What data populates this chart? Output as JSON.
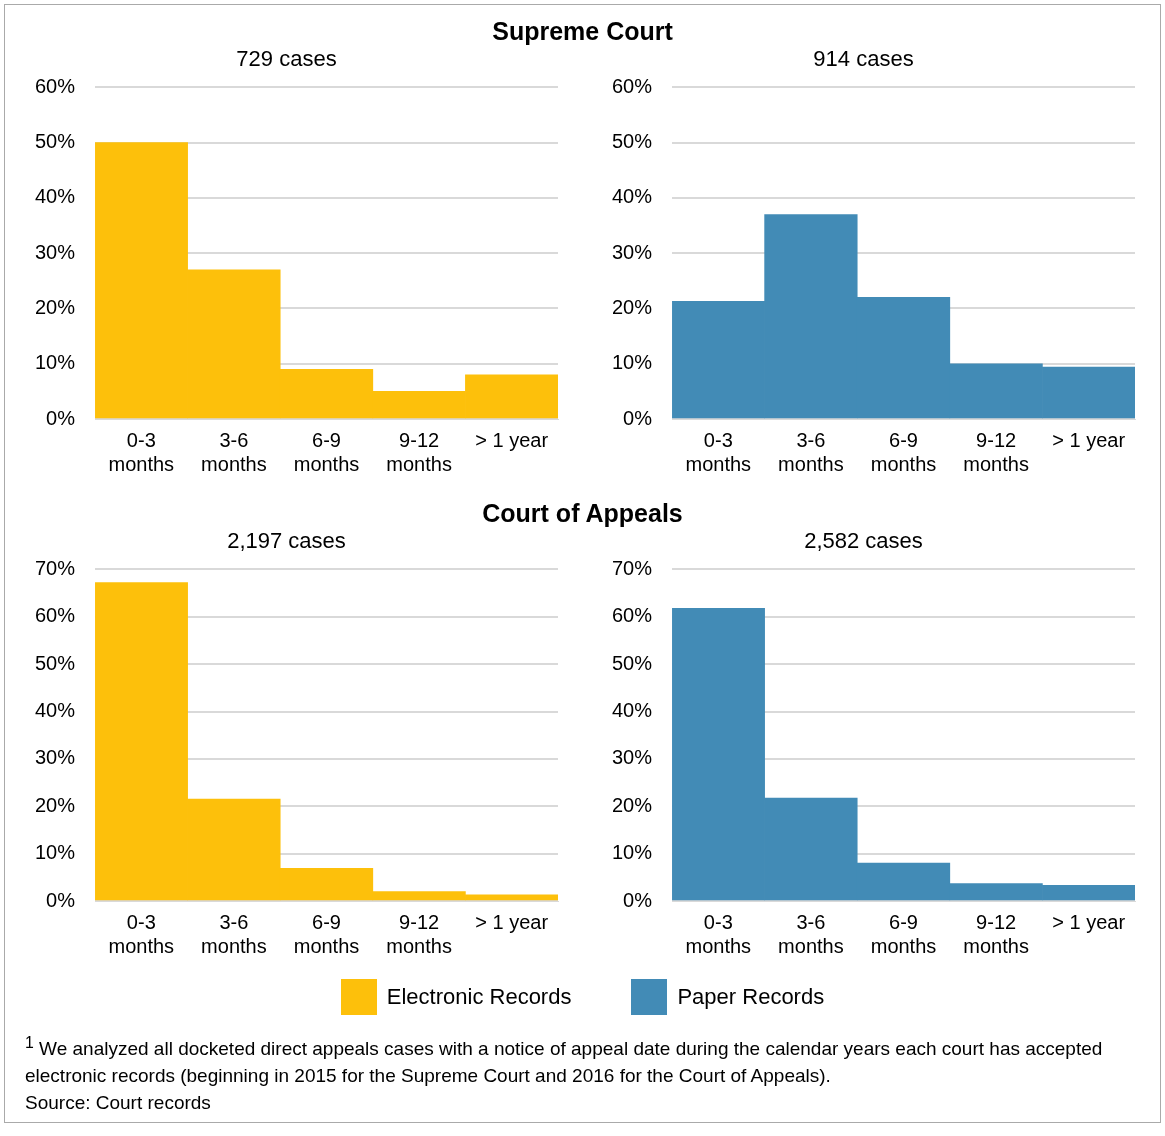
{
  "chart_data": [
    {
      "type": "bar",
      "title": "Supreme Court",
      "subtitle": "729 cases",
      "categories": [
        "0-3\nmonths",
        "3-6\nmonths",
        "6-9\nmonths",
        "9-12\nmonths",
        "> 1 year"
      ],
      "series": [
        {
          "color": "#fdc00b",
          "values": [
            50,
            27,
            9,
            5,
            8
          ]
        }
      ],
      "ylim": [
        0,
        60
      ],
      "yticks": [
        {
          "value": 0,
          "label": "0%"
        },
        {
          "value": 10,
          "label": "10%"
        },
        {
          "value": 20,
          "label": "20%"
        },
        {
          "value": 30,
          "label": "30%"
        },
        {
          "value": 40,
          "label": "40%"
        },
        {
          "value": 50,
          "label": "50%"
        },
        {
          "value": 60,
          "label": "60%"
        }
      ],
      "grid": "y",
      "legend": false
    },
    {
      "type": "bar",
      "subtitle": "914 cases",
      "categories": [
        "0-3\nmonths",
        "3-6\nmonths",
        "6-9\nmonths",
        "9-12\nmonths",
        "> 1 year"
      ],
      "series": [
        {
          "color": "#428bb6",
          "values": [
            21.3,
            37,
            22,
            10,
            9.4
          ]
        }
      ],
      "ylim": [
        0,
        60
      ],
      "yticks": [
        {
          "value": 0,
          "label": "0%"
        },
        {
          "value": 10,
          "label": "10%"
        },
        {
          "value": 20,
          "label": "20%"
        },
        {
          "value": 30,
          "label": "30%"
        },
        {
          "value": 40,
          "label": "40%"
        },
        {
          "value": 50,
          "label": "50%"
        },
        {
          "value": 60,
          "label": "60%"
        }
      ],
      "grid": "y",
      "legend": false
    },
    {
      "type": "bar",
      "title": "Court of Appeals",
      "subtitle": "2,197 cases",
      "categories": [
        "0-3\nmonths",
        "3-6\nmonths",
        "6-9\nmonths",
        "9-12\nmonths",
        "> 1 year"
      ],
      "series": [
        {
          "name": "Electronic Records",
          "color": "#fdc00b",
          "values": [
            67.2,
            21.5,
            6.9,
            2,
            1.3
          ]
        }
      ],
      "ylim": [
        0,
        70
      ],
      "yticks": [
        {
          "value": 0,
          "label": "0%"
        },
        {
          "value": 10,
          "label": "10%"
        },
        {
          "value": 20,
          "label": "20%"
        },
        {
          "value": 30,
          "label": "30%"
        },
        {
          "value": 40,
          "label": "40%"
        },
        {
          "value": 50,
          "label": "50%"
        },
        {
          "value": 60,
          "label": "60%"
        },
        {
          "value": 70,
          "label": "70%"
        }
      ],
      "grid": "y",
      "legend": "bottom"
    },
    {
      "type": "bar",
      "subtitle": "2,582 cases",
      "categories": [
        "0-3\nmonths",
        "3-6\nmonths",
        "6-9\nmonths",
        "9-12\nmonths",
        "> 1 year"
      ],
      "series": [
        {
          "name": "Paper Records",
          "color": "#428bb6",
          "values": [
            61.8,
            21.7,
            8,
            3.7,
            3.3
          ]
        }
      ],
      "ylim": [
        0,
        70
      ],
      "yticks": [
        {
          "value": 0,
          "label": "0%"
        },
        {
          "value": 10,
          "label": "10%"
        },
        {
          "value": 20,
          "label": "20%"
        },
        {
          "value": 30,
          "label": "30%"
        },
        {
          "value": 40,
          "label": "40%"
        },
        {
          "value": 50,
          "label": "50%"
        },
        {
          "value": 60,
          "label": "60%"
        },
        {
          "value": 70,
          "label": "70%"
        }
      ],
      "grid": "y",
      "legend": "bottom",
      "annotations": [
        "$^{1}$ We analyzed all docketed direct appeals cases with a notice of appeal date during the calendar years each court has accepted electronic records (beginning in 2015 for the Supreme Court and 2016 for the Court of Appeals).",
        "Source: Court records"
      ]
    }
  ]
}
